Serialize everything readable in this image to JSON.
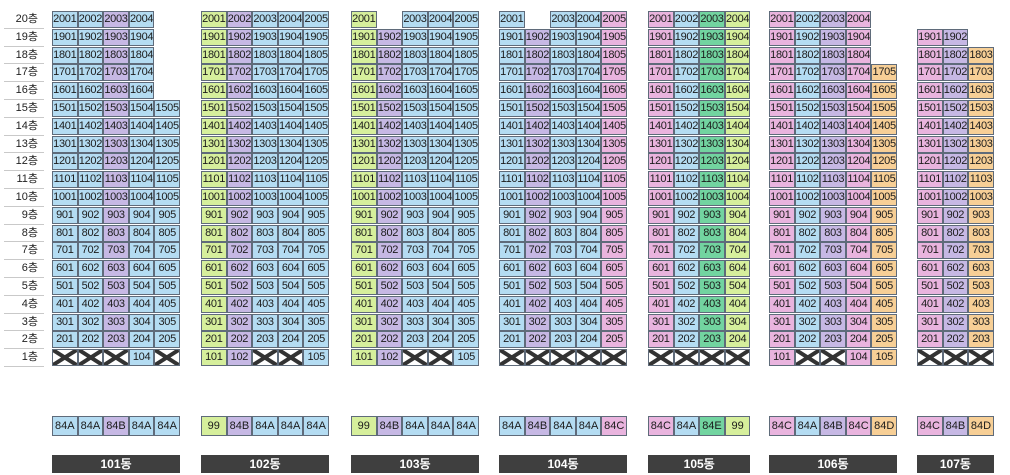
{
  "floors": [
    "20층",
    "19층",
    "18층",
    "17층",
    "16층",
    "15층",
    "14층",
    "13층",
    "12층",
    "11층",
    "10층",
    "9층",
    "8층",
    "7층",
    "6층",
    "5층",
    "4층",
    "3층",
    "2층",
    "1층"
  ],
  "colors": {
    "84A": "#b4dcf2",
    "84B": "#c6b8e4",
    "84C": "#e9b4de",
    "84D": "#f7cf96",
    "84E": "#72d4a0",
    "99": "#d6ef9c"
  },
  "buildings": [
    {
      "name": "101동",
      "types": [
        "84A",
        "84A",
        "84B",
        "84A",
        "84A"
      ],
      "max_floors": [
        20,
        20,
        20,
        20,
        15
      ],
      "ground": [
        "x",
        "x",
        "x",
        "104",
        "x"
      ]
    },
    {
      "name": "102동",
      "types": [
        "99",
        "84B",
        "84A",
        "84A",
        "84A"
      ],
      "max_floors": [
        20,
        20,
        20,
        20,
        20
      ],
      "ground": [
        "101",
        "102",
        "x",
        "x",
        "105"
      ]
    },
    {
      "name": "103동",
      "types": [
        "99",
        "84B",
        "84A",
        "84A",
        "84A"
      ],
      "max_floors": [
        20,
        19,
        20,
        20,
        20
      ],
      "ground": [
        "101",
        "102",
        "x",
        "x",
        "105"
      ]
    },
    {
      "name": "104동",
      "types": [
        "84A",
        "84B",
        "84A",
        "84A",
        "84C"
      ],
      "max_floors": [
        20,
        19,
        20,
        20,
        20
      ],
      "ground": [
        "x",
        "x",
        "x",
        "x",
        "x"
      ]
    },
    {
      "name": "105동",
      "types": [
        "84C",
        "84A",
        "84E",
        "99"
      ],
      "max_floors": [
        20,
        20,
        20,
        20
      ],
      "ground": [
        "x",
        "x",
        "x",
        "x"
      ]
    },
    {
      "name": "106동",
      "types": [
        "84C",
        "84A",
        "84B",
        "84C",
        "84D"
      ],
      "max_floors": [
        20,
        20,
        20,
        20,
        17
      ],
      "ground": [
        "101",
        "x",
        "x",
        "104",
        "105"
      ]
    },
    {
      "name": "107동",
      "types": [
        "84C",
        "84B",
        "84D"
      ],
      "max_floors": [
        19,
        19,
        18
      ],
      "ground": [
        "x",
        "x",
        "x"
      ]
    }
  ]
}
